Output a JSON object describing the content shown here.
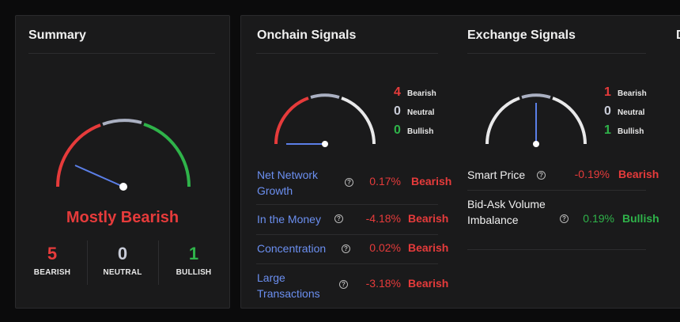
{
  "summary": {
    "title": "Summary",
    "verdict": "Mostly Bearish",
    "counts": [
      {
        "value": "5",
        "label": "BEARISH"
      },
      {
        "value": "0",
        "label": "NEUTRAL"
      },
      {
        "value": "1",
        "label": "BULLISH"
      }
    ]
  },
  "onchain": {
    "title": "Onchain Signals",
    "legend": [
      {
        "value": "4",
        "label": "Bearish"
      },
      {
        "value": "0",
        "label": "Neutral"
      },
      {
        "value": "0",
        "label": "Bullish"
      }
    ],
    "rows": [
      {
        "name": "Net Network Growth",
        "pct": "0.17%",
        "verdict": "Bearish"
      },
      {
        "name": "In the Money",
        "pct": "-4.18%",
        "verdict": "Bearish"
      },
      {
        "name": "Concentration",
        "pct": "0.02%",
        "verdict": "Bearish"
      },
      {
        "name": "Large Transactions",
        "pct": "-3.18%",
        "verdict": "Bearish"
      }
    ]
  },
  "exchange": {
    "title": "Exchange Signals",
    "legend": [
      {
        "value": "1",
        "label": "Bearish"
      },
      {
        "value": "0",
        "label": "Neutral"
      },
      {
        "value": "1",
        "label": "Bullish"
      }
    ],
    "rows": [
      {
        "name": "Smart Price",
        "pct": "-0.19%",
        "verdict": "Bearish"
      },
      {
        "name": "Bid-Ask Volume Imbalance",
        "pct": "0.19%",
        "verdict": "Bullish"
      }
    ]
  },
  "colors": {
    "bearish": "#e63b3b",
    "neutral": "#c9ccd8",
    "bullish": "#2fb34a",
    "link": "#6b8ff0",
    "needle": "#5b7fe8"
  },
  "icons": {
    "help": "question-circle-icon"
  },
  "help_glyph": "?",
  "clipped_title": "D"
}
